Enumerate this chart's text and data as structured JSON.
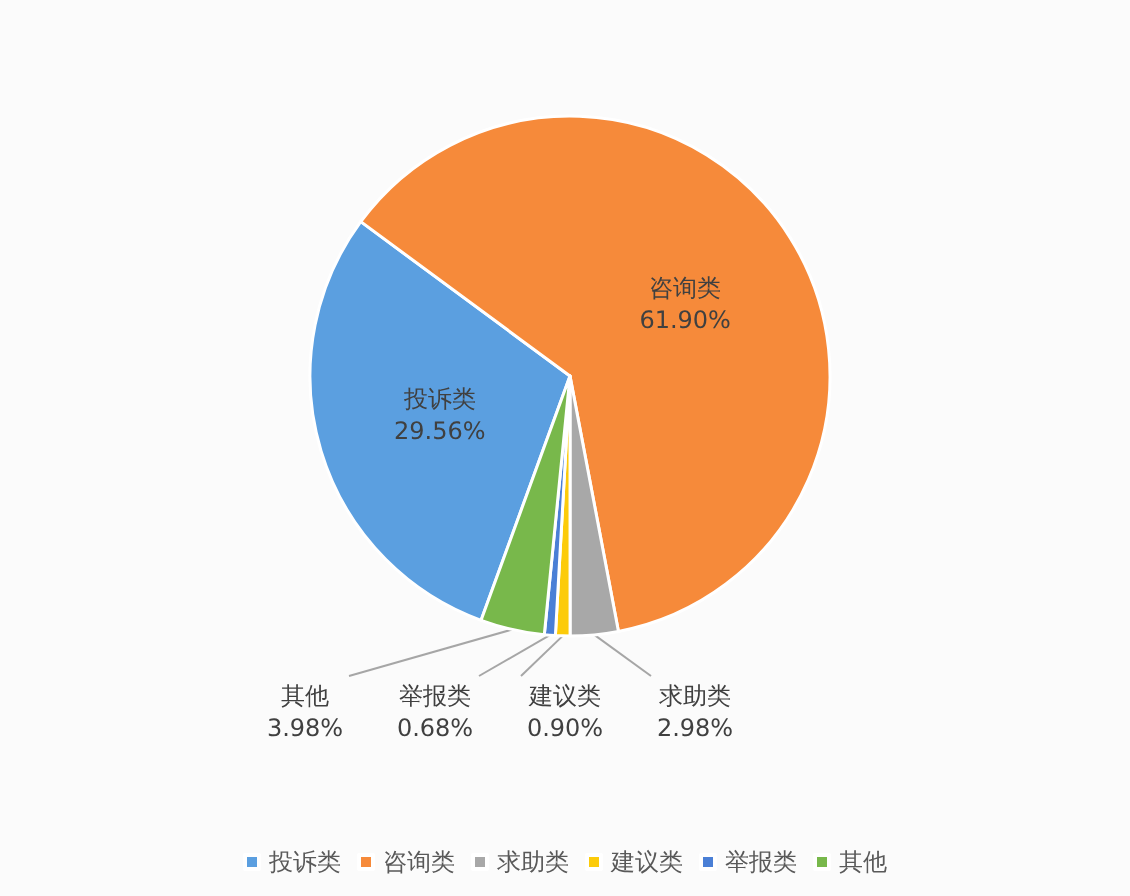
{
  "chart_data": {
    "type": "pie",
    "categories": [
      "投诉类",
      "咨询类",
      "求助类",
      "建议类",
      "举报类",
      "其他"
    ],
    "values": [
      29.56,
      61.9,
      2.98,
      0.9,
      0.68,
      3.98
    ],
    "colors": [
      "#5b9fe0",
      "#f68a3a",
      "#a8a8a8",
      "#fccb0a",
      "#4a7fd6",
      "#78b84b"
    ],
    "value_labels": [
      "29.56%",
      "61.90%",
      "2.98%",
      "0.90%",
      "0.68%",
      "3.98%"
    ],
    "legend": "bottom"
  }
}
